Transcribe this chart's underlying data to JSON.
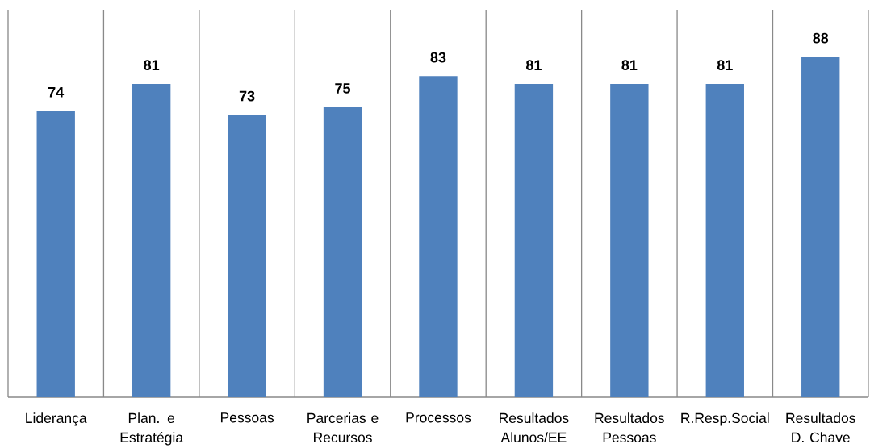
{
  "chart_data": {
    "type": "bar",
    "categories": [
      "Liderança",
      "Plan. e Estratégia",
      "Pessoas",
      "Parcerias e Recursos",
      "Processos",
      "Resultados Alunos/EE",
      "Resultados Pessoas",
      "R.Resp.Social",
      "Resultados D. Chave"
    ],
    "values": [
      74,
      81,
      73,
      75,
      83,
      81,
      81,
      81,
      88
    ],
    "color": "#4f81bd",
    "grid": "x",
    "data_labels": true,
    "tick_labels": "x"
  }
}
